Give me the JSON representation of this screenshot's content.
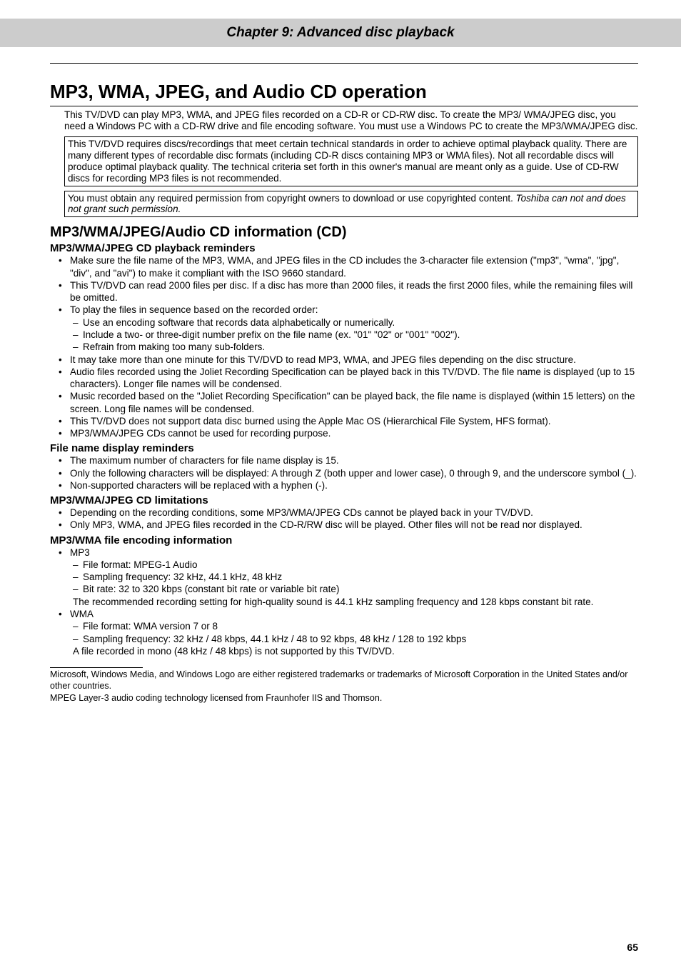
{
  "chapter_title": "Chapter 9: Advanced disc playback",
  "h1": "MP3, WMA, JPEG, and Audio CD operation",
  "intro": "This TV/DVD can play MP3, WMA, and JPEG files recorded on a CD-R or CD-RW disc. To create the MP3/ WMA/JPEG disc, you need a Windows PC with a CD-RW drive and file encoding software. You must use a Windows PC to create the MP3/WMA/JPEG disc.",
  "box1": "This TV/DVD requires discs/recordings that meet certain technical standards in order to achieve optimal playback quality. There are many different types of recordable disc formats (including CD-R discs containing MP3 or WMA files). Not all recordable discs will produce optimal playback quality. The technical criteria set forth in this owner's manual are meant only as a guide. Use of CD-RW discs for recording MP3 files is not recommended.",
  "box2_a": "You must obtain any required permission from copyright owners to download or use copyrighted content. ",
  "box2_b": "Toshiba can not and does not grant such permission.",
  "h2": "MP3/WMA/JPEG/Audio CD information (CD)",
  "sec1": {
    "heading": "MP3/WMA/JPEG CD playback reminders",
    "items": [
      {
        "text": "Make sure the file name of the MP3, WMA, and JPEG files in the CD includes the 3-character file extension (\"mp3\", \"wma\", \"jpg\", \"div\", and \"avi\") to make it compliant with the ISO 9660 standard."
      },
      {
        "text": "This TV/DVD can read 2000 files per disc. If a disc has more than 2000 files, it reads the first 2000 files, while the remaining files will be omitted."
      },
      {
        "text": "To play the files in sequence based on the recorded order:",
        "sub": [
          "Use an encoding software that records data alphabetically or numerically.",
          "Include a two- or three-digit number prefix on the file name (ex. \"01\" \"02\" or \"001\" \"002\").",
          "Refrain from making too many sub-folders."
        ]
      },
      {
        "text": "It may take more than one minute for this TV/DVD to read MP3, WMA, and JPEG files depending on the disc structure."
      },
      {
        "text": "Audio files recorded using the Joliet Recording Specification can be played back in this TV/DVD. The file name is displayed (up to 15 characters). Longer file names will be condensed."
      },
      {
        "text": "Music recorded based on the \"Joliet Recording Specification\" can be played back, the file name is displayed (within 15 letters) on the screen. Long file names will be condensed."
      },
      {
        "text": "This TV/DVD does not support data disc burned using the Apple Mac OS (Hierarchical File System, HFS format)."
      },
      {
        "text": "MP3/WMA/JPEG CDs cannot be used for recording purpose."
      }
    ]
  },
  "sec2": {
    "heading": "File name display reminders",
    "items": [
      {
        "text": "The maximum number of characters for file name display is 15."
      },
      {
        "text": "Only the following characters will be displayed: A through Z (both upper and lower case), 0 through 9, and the underscore symbol (_)."
      },
      {
        "text": "Non-supported characters will be replaced with a hyphen (-)."
      }
    ]
  },
  "sec3": {
    "heading": "MP3/WMA/JPEG CD limitations",
    "items": [
      {
        "text": "Depending on the recording conditions, some MP3/WMA/JPEG CDs cannot be played back in your TV/DVD."
      },
      {
        "text": "Only MP3, WMA, and JPEG files recorded in the CD-R/RW disc will be played. Other files will not be read nor displayed."
      }
    ]
  },
  "sec4": {
    "heading": "MP3/WMA file encoding information",
    "items": [
      {
        "text": "MP3",
        "sub": [
          "File format: MPEG-1 Audio",
          "Sampling frequency: 32 kHz, 44.1 kHz, 48 kHz",
          "Bit rate: 32 to 320 kbps (constant bit rate or variable bit rate)"
        ],
        "note": "The recommended recording setting for high-quality sound is 44.1 kHz sampling frequency and 128 kbps constant bit rate."
      },
      {
        "text": "WMA",
        "sub": [
          "File format: WMA version 7 or 8",
          "Sampling frequency: 32 kHz / 48 kbps, 44.1 kHz / 48 to 92 kbps, 48 kHz / 128 to 192 kbps"
        ],
        "note": "A file recorded in mono (48 kHz / 48 kbps) is not supported by this TV/DVD."
      }
    ]
  },
  "footnote1": "Microsoft, Windows Media, and Windows Logo are either registered trademarks or trademarks of Microsoft Corporation in the United States and/or other countries.",
  "footnote2": "MPEG Layer-3 audio coding technology licensed from Fraunhofer IIS and Thomson.",
  "page_number": "65"
}
